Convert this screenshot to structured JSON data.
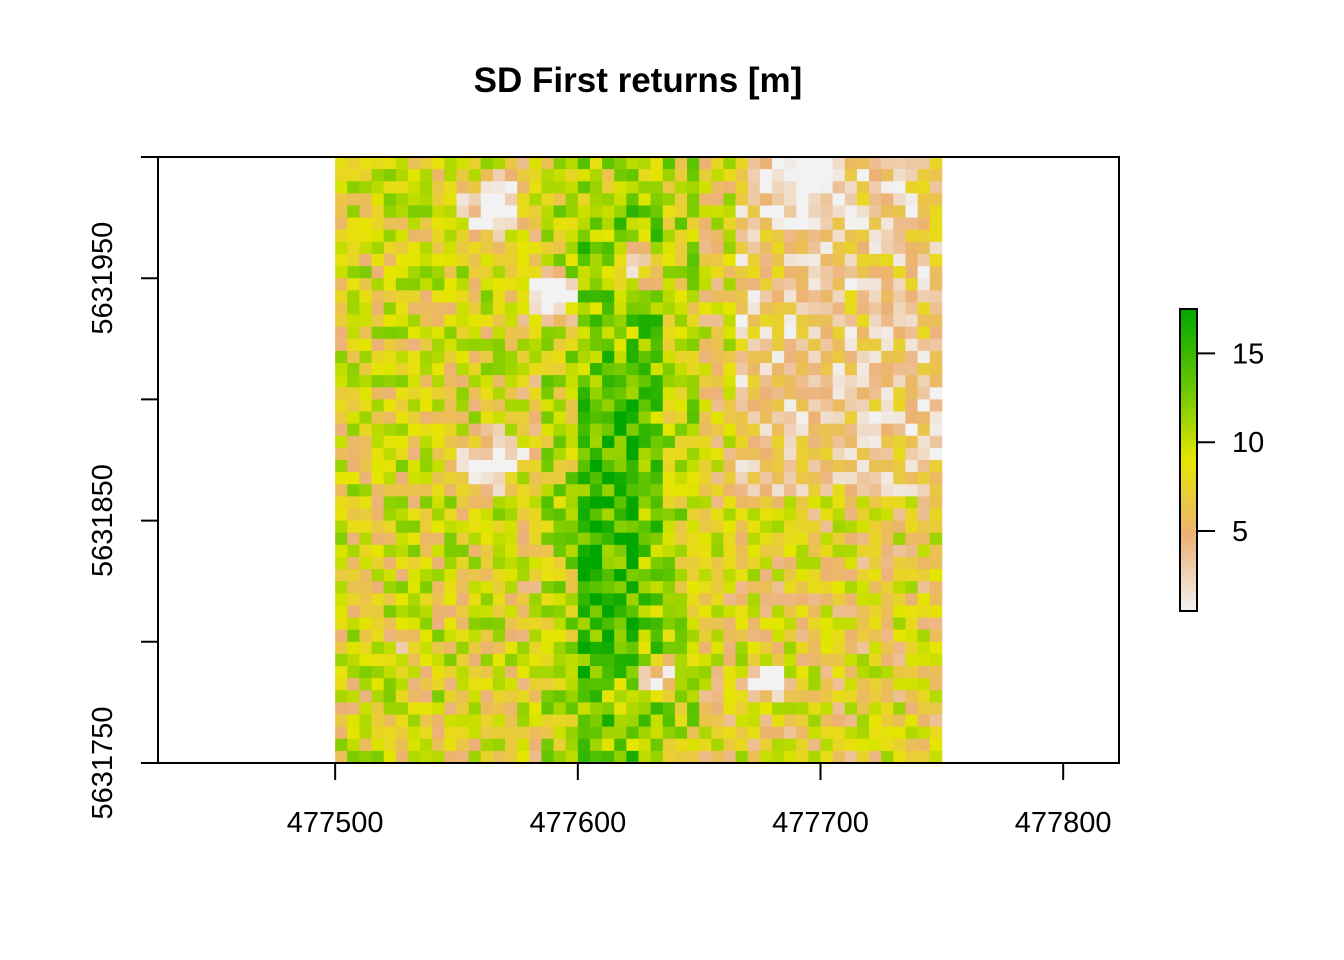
{
  "chart_data": {
    "type": "heatmap",
    "title": "SD First returns [m]",
    "xlabel": "",
    "ylabel": "",
    "xlim": [
      477427,
      477823
    ],
    "ylim": [
      5631750,
      5632000
    ],
    "x_ticks": [
      477500,
      477600,
      477700,
      477800
    ],
    "x_tick_labels": [
      "477500",
      "477600",
      "477700",
      "477800"
    ],
    "y_ticks": [
      5631750,
      5631800,
      5631850,
      5631900,
      5631950,
      5632000
    ],
    "y_tick_labels": [
      "5631750",
      "",
      "5631850",
      "",
      "5631950",
      ""
    ],
    "raster_extent": {
      "xmin": 477500,
      "xmax": 477750,
      "ymin": 5631750,
      "ymax": 5632000
    },
    "cell_size": 5,
    "rows": 50,
    "cols": 50,
    "value_range": [
      0.5,
      17.5
    ],
    "colorbar": {
      "ticks": [
        5,
        10,
        15
      ],
      "tick_labels": [
        "5",
        "10",
        "15"
      ],
      "min": 0.5,
      "max": 17.5
    },
    "color_stops": [
      "#f2f2f2",
      "#ecb176",
      "#e6e600",
      "#63c600",
      "#00a600"
    ],
    "grid": false,
    "legend_position": "right"
  }
}
